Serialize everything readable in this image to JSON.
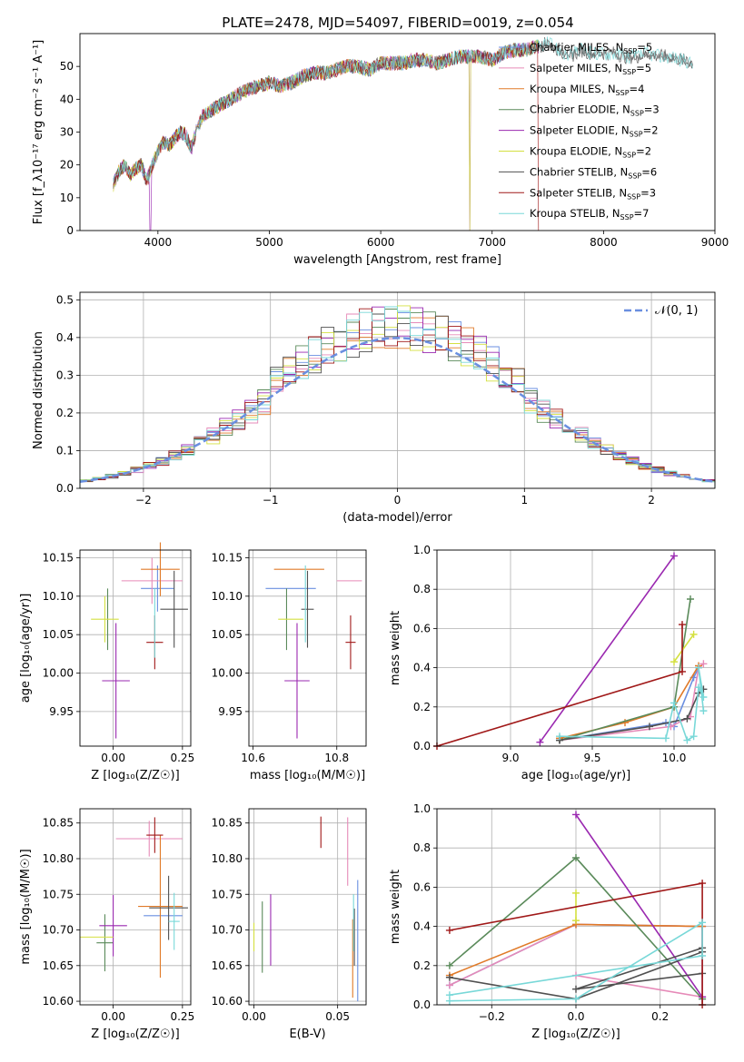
{
  "title": "PLATE=2478, MJD=54097, FIBERID=0019, z=0.054",
  "colors": {
    "Chabrier MILES": "#6a8fe0",
    "Salpeter MILES": "#e68ab8",
    "Kroupa MILES": "#e07a28",
    "Chabrier ELODIE": "#5a8a5a",
    "Salpeter ELODIE": "#9a28b0",
    "Kroupa ELODIE": "#d4e040",
    "Chabrier STELIB": "#505050",
    "Salpeter STELIB": "#a01818",
    "Kroupa STELIB": "#78d8d8"
  },
  "chart_data": [
    {
      "id": "spectrum",
      "type": "line",
      "title": "PLATE=2478, MJD=54097, FIBERID=0019, z=0.054",
      "xlabel": "wavelength [Angstrom, rest frame]",
      "ylabel": "Flux [f_λ10⁻¹⁷ erg cm⁻² s⁻¹ A⁻¹]",
      "xlim": [
        3300,
        9000
      ],
      "ylim": [
        0,
        60
      ],
      "xticks": [
        "4000",
        "5000",
        "6000",
        "7000",
        "8000",
        "9000"
      ],
      "yticks": [
        "0",
        "10",
        "20",
        "30",
        "40",
        "50"
      ],
      "grid": false,
      "legend_position": "right",
      "legend": [
        {
          "label": "Chabrier MILES, N",
          "sub": "SSP",
          "eq": "=5"
        },
        {
          "label": "Salpeter MILES, N",
          "sub": "SSP",
          "eq": "=5"
        },
        {
          "label": "Kroupa MILES, N",
          "sub": "SSP",
          "eq": "=4"
        },
        {
          "label": "Chabrier ELODIE, N",
          "sub": "SSP",
          "eq": "=3"
        },
        {
          "label": "Salpeter ELODIE, N",
          "sub": "SSP",
          "eq": "=2"
        },
        {
          "label": "Kroupa ELODIE, N",
          "sub": "SSP",
          "eq": "=2"
        },
        {
          "label": "Chabrier STELIB, N",
          "sub": "SSP",
          "eq": "=6"
        },
        {
          "label": "Salpeter STELIB, N",
          "sub": "SSP",
          "eq": "=3"
        },
        {
          "label": "Kroupa STELIB, N",
          "sub": "SSP",
          "eq": "=7"
        }
      ],
      "envelope": {
        "x": [
          3600,
          3650,
          3700,
          3750,
          3800,
          3850,
          3900,
          3950,
          4000,
          4050,
          4100,
          4150,
          4200,
          4250,
          4300,
          4350,
          4400,
          4500,
          4600,
          4700,
          4800,
          4900,
          5000,
          5100,
          5200,
          5300,
          5400,
          5500,
          5600,
          5700,
          5800,
          5900,
          6000,
          6100,
          6200,
          6300,
          6400,
          6500,
          6600,
          6700,
          6800,
          6900,
          7000,
          7100,
          7200,
          7300,
          7400,
          7500,
          7600,
          7700,
          7800,
          7900,
          8000,
          8100,
          8200,
          8300,
          8400,
          8500,
          8600,
          8700,
          8800
        ],
        "y": [
          14,
          18,
          20,
          17,
          19,
          20,
          15,
          20,
          24,
          27,
          26,
          28,
          30,
          29,
          25,
          31,
          35,
          37,
          39,
          41,
          43,
          44,
          45,
          44,
          45,
          47,
          48,
          48,
          49,
          50,
          50,
          49,
          51,
          51,
          51,
          52,
          52,
          51,
          52,
          53,
          53,
          53,
          52,
          54,
          55,
          55,
          56,
          57,
          55,
          53,
          55,
          54,
          54,
          54,
          53,
          53,
          54,
          53,
          53,
          52,
          51
        ]
      },
      "absorption_lines": [
        {
          "x": 3933,
          "y": 0
        },
        {
          "x": 4100,
          "y": 16
        },
        {
          "x": 4300,
          "y": 20
        },
        {
          "x": 6800,
          "y": 0
        },
        {
          "x": 7420,
          "y": 0
        }
      ]
    },
    {
      "id": "residuals",
      "type": "histogram",
      "xlabel": "(data-model)/error",
      "ylabel": "Normed distribution",
      "xlim": [
        -2.5,
        2.5
      ],
      "ylim": [
        0,
        0.52
      ],
      "xticks": [
        "−2",
        "−1",
        "0",
        "1",
        "2"
      ],
      "yticks": [
        "0.0",
        "0.1",
        "0.2",
        "0.3",
        "0.4",
        "0.5"
      ],
      "grid": true,
      "legend_position": "top-right",
      "legend": [
        {
          "label": "𝒩(0, 1)"
        }
      ],
      "bins": 50
    },
    {
      "id": "age_vs_Z",
      "type": "errorbar",
      "xlabel": "Z [log₁₀(Z/Z☉)]",
      "ylabel": "age [log₁₀(age/yr)]",
      "xlim": [
        -0.12,
        0.28
      ],
      "ylim": [
        9.905,
        10.16
      ],
      "xticks": [
        "0.00",
        "0.25"
      ],
      "yticks": [
        "9.95",
        "10.00",
        "10.05",
        "10.10",
        "10.15"
      ],
      "points": [
        {
          "model": "Chabrier MILES",
          "x": 0.16,
          "xerr": 0.06,
          "y": 10.11,
          "yerr": 0.03
        },
        {
          "model": "Salpeter MILES",
          "x": 0.14,
          "xerr": 0.11,
          "y": 10.12,
          "yerr": 0.03
        },
        {
          "model": "Kroupa MILES",
          "x": 0.17,
          "xerr": 0.07,
          "y": 10.135,
          "yerr": 0.035
        },
        {
          "model": "Chabrier ELODIE",
          "x": -0.02,
          "xerr": 0.0,
          "y": 10.07,
          "yerr": 0.04
        },
        {
          "model": "Salpeter ELODIE",
          "x": 0.01,
          "xerr": 0.05,
          "y": 9.99,
          "yerr": 0.075
        },
        {
          "model": "Kroupa ELODIE",
          "x": -0.03,
          "xerr": 0.05,
          "y": 10.07,
          "yerr": 0.03
        },
        {
          "model": "Chabrier STELIB",
          "x": 0.22,
          "xerr": 0.05,
          "y": 10.083,
          "yerr": 0.05
        },
        {
          "model": "Salpeter STELIB",
          "x": 0.15,
          "xerr": 0.03,
          "y": 10.04,
          "yerr": 0.035
        },
        {
          "model": "Kroupa STELIB",
          "x": 0.15,
          "xerr": 0.0,
          "y": 10.065,
          "yerr": 0.045
        }
      ]
    },
    {
      "id": "age_vs_mass",
      "type": "errorbar",
      "xlabel": "mass [log₁₀(M/M☉)]",
      "ylabel": "",
      "xlim": [
        10.59,
        10.87
      ],
      "ylim": [
        9.905,
        10.16
      ],
      "xticks": [
        "10.6",
        "10.8"
      ],
      "yticks": [
        "9.95",
        "10.00",
        "10.05",
        "10.10",
        "10.15"
      ],
      "points": [
        {
          "model": "Chabrier MILES",
          "x": 10.69,
          "xerr": 0.06,
          "y": 10.11,
          "yerr": 0.0
        },
        {
          "model": "Salpeter MILES",
          "x": 10.83,
          "xerr": 0.03,
          "y": 10.12,
          "yerr": 0.0
        },
        {
          "model": "Kroupa MILES",
          "x": 10.71,
          "xerr": 0.06,
          "y": 10.135,
          "yerr": 0.0
        },
        {
          "model": "Chabrier ELODIE",
          "x": 10.68,
          "xerr": 0.0,
          "y": 10.07,
          "yerr": 0.04
        },
        {
          "model": "Salpeter ELODIE",
          "x": 10.705,
          "xerr": 0.03,
          "y": 9.99,
          "yerr": 0.075
        },
        {
          "model": "Kroupa ELODIE",
          "x": 10.69,
          "xerr": 0.03,
          "y": 10.07,
          "yerr": 0.0
        },
        {
          "model": "Chabrier STELIB",
          "x": 10.73,
          "xerr": 0.015,
          "y": 10.083,
          "yerr": 0.05
        },
        {
          "model": "Salpeter STELIB",
          "x": 10.833,
          "xerr": 0.012,
          "y": 10.04,
          "yerr": 0.035
        },
        {
          "model": "Kroupa STELIB",
          "x": 10.725,
          "xerr": 0.0,
          "y": 10.09,
          "yerr": 0.05
        }
      ]
    },
    {
      "id": "weights_vs_age",
      "type": "line",
      "xlabel": "age [log₁₀(age/yr)]",
      "ylabel": "mass weight",
      "xlim": [
        8.55,
        10.25
      ],
      "ylim": [
        0,
        1.0
      ],
      "xticks": [
        "9.0",
        "9.5",
        "10.0"
      ],
      "yticks": [
        "0.0",
        "0.2",
        "0.4",
        "0.6",
        "0.8",
        "1.0"
      ],
      "grid": true,
      "series": [
        {
          "model": "Chabrier MILES",
          "x": [
            9.3,
            9.95,
            10.0,
            10.12,
            10.15
          ],
          "y": [
            0.03,
            0.12,
            0.1,
            0.35,
            0.4
          ]
        },
        {
          "model": "Salpeter MILES",
          "x": [
            9.3,
            9.98,
            10.1,
            10.15,
            10.18
          ],
          "y": [
            0.03,
            0.1,
            0.15,
            0.4,
            0.42
          ]
        },
        {
          "model": "Kroupa MILES",
          "x": [
            9.3,
            9.7,
            10.0,
            10.15
          ],
          "y": [
            0.04,
            0.12,
            0.2,
            0.41
          ]
        },
        {
          "model": "Chabrier ELODIE",
          "x": [
            9.3,
            10.0,
            10.1
          ],
          "y": [
            0.03,
            0.2,
            0.75
          ]
        },
        {
          "model": "Salpeter ELODIE",
          "x": [
            9.18,
            10.0
          ],
          "y": [
            0.02,
            0.97
          ]
        },
        {
          "model": "Kroupa ELODIE",
          "x": [
            10.0,
            10.12
          ],
          "y": [
            0.43,
            0.57
          ]
        },
        {
          "model": "Chabrier STELIB",
          "x": [
            9.3,
            9.85,
            10.08,
            10.15,
            10.18
          ],
          "y": [
            0.03,
            0.1,
            0.14,
            0.27,
            0.29
          ]
        },
        {
          "model": "Salpeter STELIB",
          "x": [
            8.55,
            10.05,
            10.05
          ],
          "y": [
            0.0,
            0.38,
            0.62
          ]
        },
        {
          "model": "Kroupa STELIB",
          "x": [
            9.3,
            9.95,
            10.0,
            10.08,
            10.12,
            10.15,
            10.18,
            10.15,
            10.18
          ],
          "y": [
            0.05,
            0.04,
            0.22,
            0.03,
            0.05,
            0.3,
            0.25,
            0.4,
            0.18
          ]
        }
      ]
    },
    {
      "id": "mass_vs_Z",
      "type": "errorbar",
      "xlabel": "Z [log₁₀(Z/Z☉)]",
      "ylabel": "mass [log₁₀(M/M☉)]",
      "xlim": [
        -0.12,
        0.28
      ],
      "ylim": [
        10.595,
        10.87
      ],
      "xticks": [
        "0.00",
        "0.25"
      ],
      "yticks": [
        "10.60",
        "10.65",
        "10.70",
        "10.75",
        "10.80",
        "10.85"
      ],
      "points": [
        {
          "model": "Chabrier MILES",
          "x": 0.18,
          "xerr": 0.07,
          "y": 10.72,
          "yerr": 0.0
        },
        {
          "model": "Salpeter MILES",
          "x": 0.13,
          "xerr": 0.12,
          "y": 10.828,
          "yerr": 0.025
        },
        {
          "model": "Kroupa MILES",
          "x": 0.17,
          "xerr": 0.08,
          "y": 10.733,
          "yerr": 0.1
        },
        {
          "model": "Chabrier ELODIE",
          "x": -0.03,
          "xerr": 0.03,
          "y": 10.682,
          "yerr": 0.04
        },
        {
          "model": "Salpeter ELODIE",
          "x": 0.0,
          "xerr": 0.05,
          "y": 10.706,
          "yerr": 0.043
        },
        {
          "model": "Kroupa ELODIE",
          "x": -0.06,
          "xerr": 0.06,
          "y": 10.69,
          "yerr": 0.0
        },
        {
          "model": "Chabrier STELIB",
          "x": 0.2,
          "xerr": 0.07,
          "y": 10.731,
          "yerr": 0.045
        },
        {
          "model": "Salpeter STELIB",
          "x": 0.15,
          "xerr": 0.03,
          "y": 10.833,
          "yerr": 0.025
        },
        {
          "model": "Kroupa STELIB",
          "x": 0.22,
          "xerr": 0.02,
          "y": 10.712,
          "yerr": 0.04
        }
      ]
    },
    {
      "id": "mass_vs_ebv",
      "type": "errorbar",
      "xlabel": "E(B-V)",
      "ylabel": "",
      "xlim": [
        -0.003,
        0.067
      ],
      "ylim": [
        10.595,
        10.87
      ],
      "xticks": [
        "0.00",
        "0.05"
      ],
      "yticks": [
        "10.60",
        "10.65",
        "10.70",
        "10.75",
        "10.80",
        "10.85"
      ],
      "points": [
        {
          "model": "Chabrier MILES",
          "x": 0.062,
          "xerr": 0.0,
          "y": 10.685,
          "yerr": 0.085
        },
        {
          "model": "Salpeter MILES",
          "x": 0.056,
          "xerr": 0.0,
          "y": 10.81,
          "yerr": 0.048
        },
        {
          "model": "Kroupa MILES",
          "x": 0.059,
          "xerr": 0.0,
          "y": 10.66,
          "yerr": 0.055
        },
        {
          "model": "Chabrier ELODIE",
          "x": 0.005,
          "xerr": 0.0,
          "y": 10.69,
          "yerr": 0.05
        },
        {
          "model": "Salpeter ELODIE",
          "x": 0.01,
          "xerr": 0.0,
          "y": 10.7,
          "yerr": 0.05
        },
        {
          "model": "Kroupa ELODIE",
          "x": 0.0,
          "xerr": 0.0,
          "y": 10.69,
          "yerr": 0.02
        },
        {
          "model": "Chabrier STELIB",
          "x": 0.06,
          "xerr": 0.0,
          "y": 10.69,
          "yerr": 0.04
        },
        {
          "model": "Salpeter STELIB",
          "x": 0.04,
          "xerr": 0.0,
          "y": 10.837,
          "yerr": 0.022
        },
        {
          "model": "Kroupa STELIB",
          "x": 0.0595,
          "xerr": 0.0,
          "y": 10.71,
          "yerr": 0.04
        }
      ]
    },
    {
      "id": "weights_vs_Z",
      "type": "line",
      "xlabel": "Z [log₁₀(Z/Z☉)]",
      "ylabel": "mass weight",
      "xlim": [
        -0.33,
        0.33
      ],
      "ylim": [
        0,
        1.0
      ],
      "xticks": [
        "−0.2",
        "0.0",
        "0.2"
      ],
      "yticks": [
        "0.0",
        "0.2",
        "0.4",
        "0.6",
        "0.8",
        "1.0"
      ],
      "grid": true,
      "series": [
        {
          "model": "Chabrier MILES",
          "x": [
            -0.3,
            0.0,
            0.3,
            0.3
          ],
          "y": [
            0.1,
            0.41,
            0.4,
            0.03
          ]
        },
        {
          "model": "Salpeter MILES",
          "x": [
            -0.3,
            0.0,
            0.3,
            0.3,
            0.0,
            0.3
          ],
          "y": [
            0.1,
            0.41,
            0.4,
            0.04,
            0.15,
            0.04
          ]
        },
        {
          "model": "Kroupa MILES",
          "x": [
            -0.3,
            0.0,
            0.3
          ],
          "y": [
            0.15,
            0.41,
            0.4
          ]
        },
        {
          "model": "Chabrier ELODIE",
          "x": [
            -0.3,
            0.0,
            0.3
          ],
          "y": [
            0.2,
            0.75,
            0.03
          ]
        },
        {
          "model": "Salpeter ELODIE",
          "x": [
            0.0,
            0.3
          ],
          "y": [
            0.97,
            0.04
          ]
        },
        {
          "model": "Kroupa ELODIE",
          "x": [
            0.0,
            0.0
          ],
          "y": [
            0.43,
            0.57
          ]
        },
        {
          "model": "Chabrier STELIB",
          "x": [
            -0.3,
            0.0,
            0.3,
            0.3,
            0.0,
            0.3
          ],
          "y": [
            0.14,
            0.03,
            0.27,
            0.29,
            0.08,
            0.16
          ]
        },
        {
          "model": "Salpeter STELIB",
          "x": [
            -0.3,
            0.3,
            0.3
          ],
          "y": [
            0.38,
            0.62,
            0.0
          ]
        },
        {
          "model": "Kroupa STELIB",
          "x": [
            -0.3,
            0.0,
            0.3,
            0.3,
            -0.3
          ],
          "y": [
            0.02,
            0.03,
            0.42,
            0.25,
            0.05
          ]
        }
      ]
    }
  ]
}
